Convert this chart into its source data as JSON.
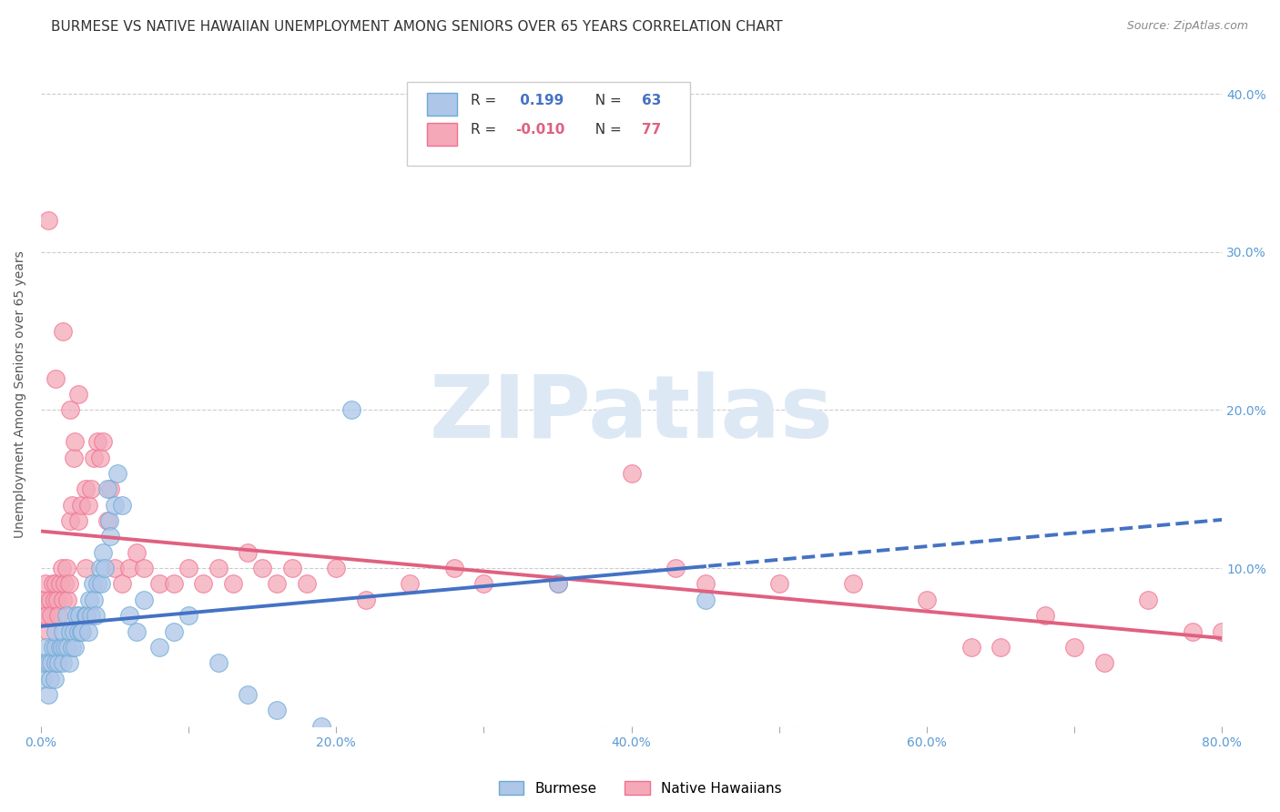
{
  "title": "BURMESE VS NATIVE HAWAIIAN UNEMPLOYMENT AMONG SENIORS OVER 65 YEARS CORRELATION CHART",
  "source": "Source: ZipAtlas.com",
  "ylabel": "Unemployment Among Seniors over 65 years",
  "xlim": [
    0.0,
    0.8
  ],
  "ylim": [
    0.0,
    0.42
  ],
  "burmese_R": 0.199,
  "burmese_N": 63,
  "native_R": -0.01,
  "native_N": 77,
  "burmese_color": "#aec6e8",
  "native_color": "#f4a8b8",
  "burmese_edge_color": "#6aaad4",
  "native_edge_color": "#f07090",
  "burmese_line_color": "#4472c4",
  "native_line_color": "#e06080",
  "background_color": "#ffffff",
  "grid_color": "#cccccc",
  "tick_color": "#5b9bd5",
  "title_color": "#333333",
  "source_color": "#888888",
  "watermark_text": "ZIPatlas",
  "watermark_color": "#dde8f5",
  "watermark_fontsize": 70,
  "title_fontsize": 11,
  "tick_fontsize": 10,
  "legend_text_color": "#333333",
  "legend_R_color": "#4472c4",
  "legend_Rn_color": "#e06080",
  "burmese_scatter_x": [
    0.0,
    0.001,
    0.002,
    0.003,
    0.005,
    0.005,
    0.006,
    0.007,
    0.008,
    0.009,
    0.01,
    0.01,
    0.01,
    0.012,
    0.013,
    0.014,
    0.015,
    0.015,
    0.016,
    0.017,
    0.018,
    0.019,
    0.02,
    0.021,
    0.022,
    0.023,
    0.024,
    0.025,
    0.026,
    0.027,
    0.028,
    0.03,
    0.031,
    0.032,
    0.033,
    0.034,
    0.035,
    0.036,
    0.037,
    0.038,
    0.04,
    0.041,
    0.042,
    0.043,
    0.045,
    0.046,
    0.047,
    0.05,
    0.052,
    0.055,
    0.06,
    0.065,
    0.07,
    0.08,
    0.09,
    0.1,
    0.12,
    0.14,
    0.16,
    0.19,
    0.21,
    0.35,
    0.45
  ],
  "burmese_scatter_y": [
    0.04,
    0.03,
    0.04,
    0.05,
    0.02,
    0.04,
    0.03,
    0.04,
    0.05,
    0.03,
    0.04,
    0.05,
    0.06,
    0.04,
    0.05,
    0.05,
    0.04,
    0.06,
    0.05,
    0.07,
    0.05,
    0.04,
    0.06,
    0.05,
    0.06,
    0.05,
    0.07,
    0.06,
    0.07,
    0.06,
    0.06,
    0.07,
    0.07,
    0.06,
    0.08,
    0.07,
    0.09,
    0.08,
    0.07,
    0.09,
    0.1,
    0.09,
    0.11,
    0.1,
    0.15,
    0.13,
    0.12,
    0.14,
    0.16,
    0.14,
    0.07,
    0.06,
    0.08,
    0.05,
    0.06,
    0.07,
    0.04,
    0.02,
    0.01,
    0.0,
    0.2,
    0.09,
    0.08
  ],
  "native_scatter_x": [
    0.0,
    0.001,
    0.002,
    0.003,
    0.004,
    0.005,
    0.006,
    0.007,
    0.008,
    0.009,
    0.01,
    0.011,
    0.012,
    0.013,
    0.014,
    0.015,
    0.016,
    0.017,
    0.018,
    0.019,
    0.02,
    0.021,
    0.022,
    0.023,
    0.025,
    0.027,
    0.03,
    0.032,
    0.034,
    0.036,
    0.038,
    0.04,
    0.042,
    0.045,
    0.047,
    0.05,
    0.055,
    0.06,
    0.065,
    0.07,
    0.08,
    0.09,
    0.1,
    0.11,
    0.12,
    0.13,
    0.14,
    0.15,
    0.16,
    0.17,
    0.18,
    0.2,
    0.22,
    0.25,
    0.28,
    0.3,
    0.35,
    0.4,
    0.43,
    0.45,
    0.5,
    0.55,
    0.6,
    0.63,
    0.65,
    0.68,
    0.7,
    0.72,
    0.75,
    0.78,
    0.8,
    0.005,
    0.01,
    0.015,
    0.02,
    0.025,
    0.03
  ],
  "native_scatter_y": [
    0.08,
    0.07,
    0.08,
    0.09,
    0.07,
    0.06,
    0.08,
    0.07,
    0.09,
    0.08,
    0.09,
    0.08,
    0.07,
    0.09,
    0.1,
    0.08,
    0.09,
    0.1,
    0.08,
    0.09,
    0.13,
    0.14,
    0.17,
    0.18,
    0.13,
    0.14,
    0.15,
    0.14,
    0.15,
    0.17,
    0.18,
    0.17,
    0.18,
    0.13,
    0.15,
    0.1,
    0.09,
    0.1,
    0.11,
    0.1,
    0.09,
    0.09,
    0.1,
    0.09,
    0.1,
    0.09,
    0.11,
    0.1,
    0.09,
    0.1,
    0.09,
    0.1,
    0.08,
    0.09,
    0.1,
    0.09,
    0.09,
    0.16,
    0.1,
    0.09,
    0.09,
    0.09,
    0.08,
    0.05,
    0.05,
    0.07,
    0.05,
    0.04,
    0.08,
    0.06,
    0.06,
    0.32,
    0.22,
    0.25,
    0.2,
    0.21,
    0.1
  ]
}
